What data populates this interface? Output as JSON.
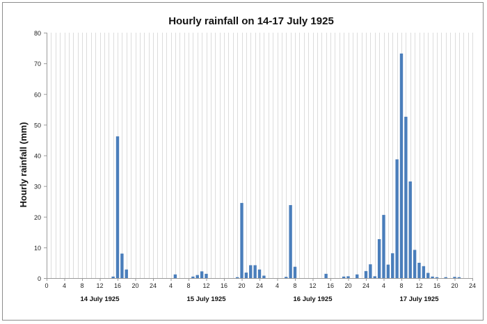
{
  "chart_data": {
    "type": "bar",
    "title": "Hourly rainfall on 14-17 July 1925",
    "ylabel": "Hourly rainfall (mm)",
    "xlabel": "",
    "ylim": [
      0,
      80
    ],
    "yticks": [
      0,
      10,
      20,
      30,
      40,
      50,
      60,
      70,
      80
    ],
    "xlim": [
      0,
      96
    ],
    "xticks": [
      0,
      4,
      8,
      12,
      16,
      20,
      24,
      28,
      32,
      36,
      40,
      44,
      48,
      52,
      56,
      60,
      64,
      68,
      72,
      76,
      80,
      84,
      88,
      92,
      96
    ],
    "xtick_labels": [
      "0",
      "4",
      "8",
      "12",
      "16",
      "20",
      "24",
      "4",
      "8",
      "12",
      "16",
      "20",
      "24",
      "4",
      "8",
      "12",
      "16",
      "20",
      "24",
      "4",
      "8",
      "12",
      "16",
      "20",
      "24"
    ],
    "day_labels": [
      {
        "label": "14 July 1925",
        "center": 12
      },
      {
        "label": "15 July 1925",
        "center": 36
      },
      {
        "label": "16 July 1925",
        "center": 60
      },
      {
        "label": "17 July 1925",
        "center": 84
      }
    ],
    "grid": {
      "vertical": true,
      "horizontal": false
    },
    "bar_color": "#4a7ebb",
    "x": [
      15,
      16,
      17,
      18,
      29,
      33,
      34,
      35,
      36,
      43,
      44,
      45,
      46,
      47,
      48,
      49,
      54,
      55,
      56,
      63,
      67,
      68,
      70,
      72,
      73,
      74,
      75,
      76,
      77,
      78,
      79,
      80,
      81,
      82,
      83,
      84,
      85,
      86,
      87,
      88,
      90,
      92,
      93
    ],
    "values": [
      0.5,
      46.2,
      8.0,
      2.8,
      1.2,
      0.5,
      1.0,
      2.2,
      1.4,
      0.3,
      24.5,
      1.8,
      4.2,
      4.2,
      2.8,
      0.8,
      0.4,
      23.8,
      3.7,
      1.4,
      0.5,
      0.6,
      1.2,
      2.3,
      4.5,
      0.6,
      12.7,
      20.6,
      4.4,
      8.1,
      38.7,
      73.2,
      52.6,
      31.5,
      9.2,
      5.0,
      3.9,
      1.7,
      0.5,
      0.3,
      0.3,
      0.4,
      0.3
    ]
  }
}
